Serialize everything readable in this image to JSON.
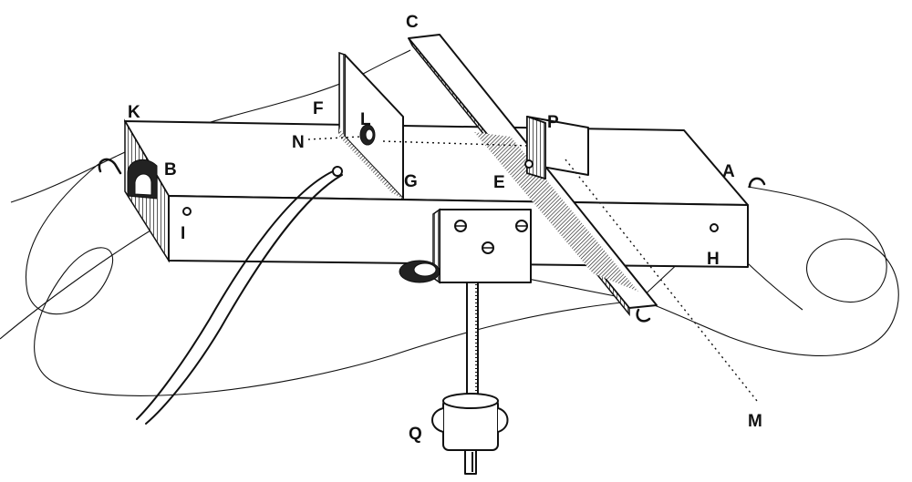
{
  "figure": {
    "labels": {
      "A": "A",
      "B": "B",
      "C": "C",
      "E": "E",
      "F": "F",
      "G": "G",
      "H": "H",
      "I": "I",
      "K": "K",
      "L": "L",
      "M": "M",
      "N": "N",
      "P": "P",
      "Q": "Q"
    }
  }
}
